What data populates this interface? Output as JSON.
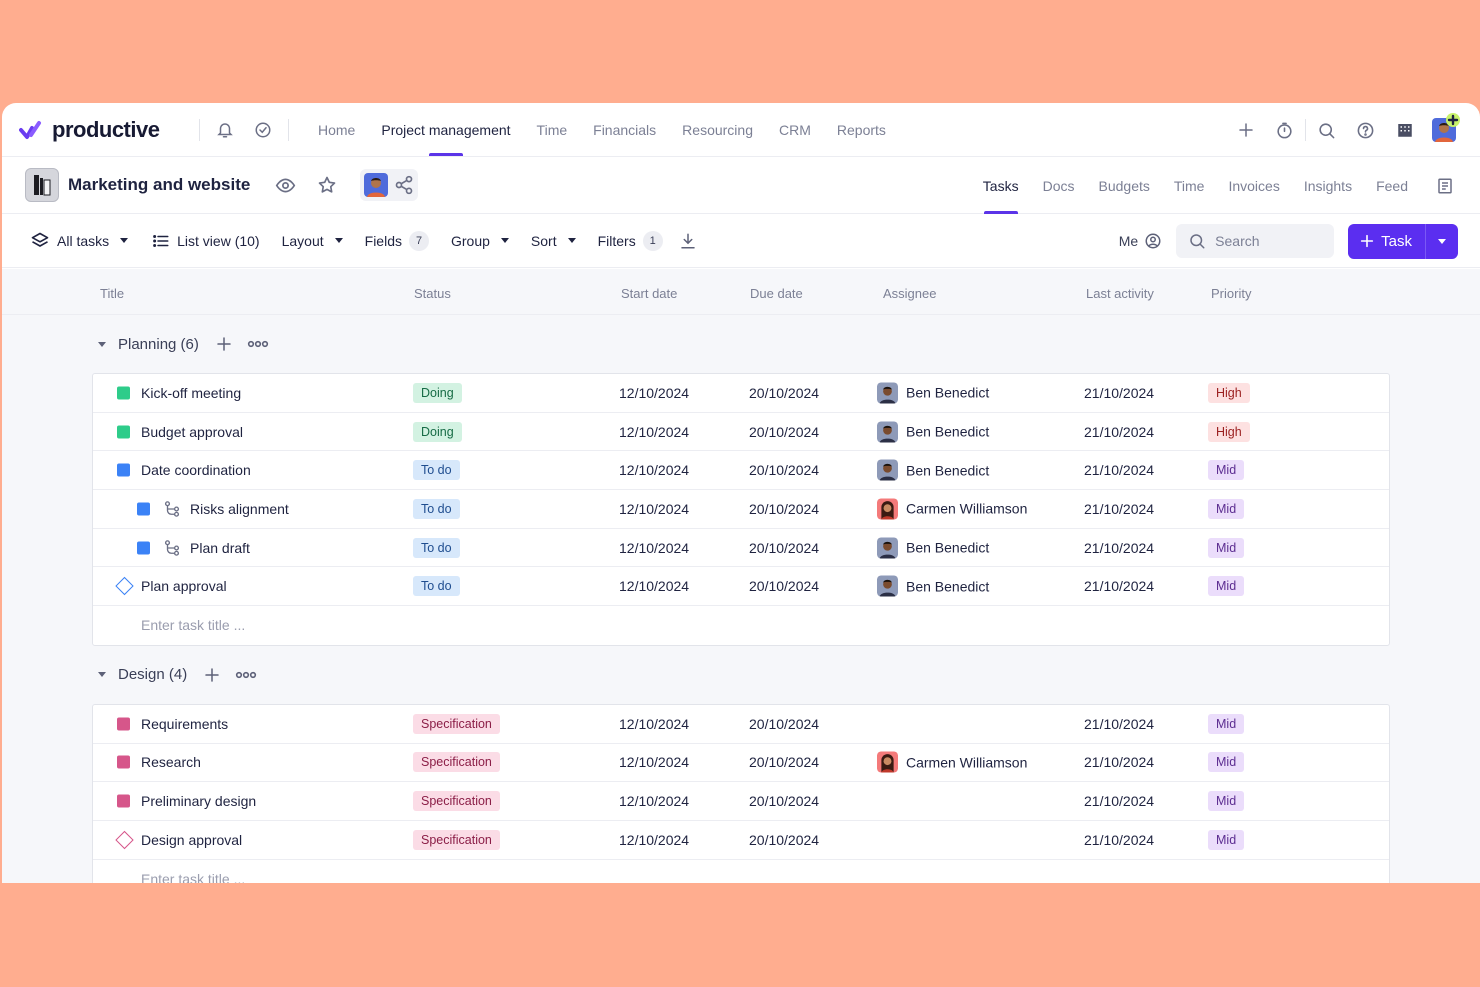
{
  "app": {
    "logo_text": "productive"
  },
  "topnav": {
    "links": [
      {
        "label": "Home",
        "active": false
      },
      {
        "label": "Project management",
        "active": true
      },
      {
        "label": "Time",
        "active": false
      },
      {
        "label": "Financials",
        "active": false
      },
      {
        "label": "Resourcing",
        "active": false
      },
      {
        "label": "CRM",
        "active": false
      },
      {
        "label": "Reports",
        "active": false
      }
    ]
  },
  "project": {
    "title": "Marketing and website",
    "tabs": [
      {
        "label": "Tasks",
        "active": true
      },
      {
        "label": "Docs",
        "active": false
      },
      {
        "label": "Budgets",
        "active": false
      },
      {
        "label": "Time",
        "active": false
      },
      {
        "label": "Invoices",
        "active": false
      },
      {
        "label": "Insights",
        "active": false
      },
      {
        "label": "Feed",
        "active": false
      }
    ]
  },
  "toolbar": {
    "all_tasks": "All tasks",
    "list_view": "List view (10)",
    "layout": "Layout",
    "fields": "Fields",
    "fields_count": "7",
    "group": "Group",
    "sort": "Sort",
    "filters": "Filters",
    "filters_count": "1",
    "me": "Me",
    "search_placeholder": "Search",
    "task_button": "Task"
  },
  "columns": {
    "title": "Title",
    "status": "Status",
    "start_date": "Start date",
    "due_date": "Due date",
    "assignee": "Assignee",
    "last_activity": "Last activity",
    "priority": "Priority"
  },
  "groups": [
    {
      "label": "Planning (6)",
      "new_task_placeholder": "Enter task title ...",
      "rows": [
        {
          "title": "Kick-off meeting",
          "marker": "square",
          "color": "#2ECC8A",
          "subtask": false,
          "status": "Doing",
          "status_type": "doing",
          "start": "12/10/2024",
          "due": "20/10/2024",
          "assignee": "Ben Benedict",
          "avatar": "ben",
          "last": "21/10/2024",
          "priority": "High",
          "priority_type": "high"
        },
        {
          "title": "Budget approval",
          "marker": "square",
          "color": "#2ECC8A",
          "subtask": false,
          "status": "Doing",
          "status_type": "doing",
          "start": "12/10/2024",
          "due": "20/10/2024",
          "assignee": "Ben Benedict",
          "avatar": "ben",
          "last": "21/10/2024",
          "priority": "High",
          "priority_type": "high"
        },
        {
          "title": "Date coordination",
          "marker": "square",
          "color": "#3B82F6",
          "subtask": false,
          "status": "To do",
          "status_type": "todo",
          "start": "12/10/2024",
          "due": "20/10/2024",
          "assignee": "Ben Benedict",
          "avatar": "ben",
          "last": "21/10/2024",
          "priority": "Mid",
          "priority_type": "mid"
        },
        {
          "title": "Risks alignment",
          "marker": "square",
          "color": "#3B82F6",
          "subtask": true,
          "status": "To do",
          "status_type": "todo",
          "start": "12/10/2024",
          "due": "20/10/2024",
          "assignee": "Carmen Williamson",
          "avatar": "carmen",
          "last": "21/10/2024",
          "priority": "Mid",
          "priority_type": "mid"
        },
        {
          "title": "Plan draft",
          "marker": "square",
          "color": "#3B82F6",
          "subtask": true,
          "status": "To do",
          "status_type": "todo",
          "start": "12/10/2024",
          "due": "20/10/2024",
          "assignee": "Ben Benedict",
          "avatar": "ben",
          "last": "21/10/2024",
          "priority": "Mid",
          "priority_type": "mid"
        },
        {
          "title": "Plan approval",
          "marker": "diamond",
          "color": "#3B82F6",
          "subtask": false,
          "status": "To do",
          "status_type": "todo",
          "start": "12/10/2024",
          "due": "20/10/2024",
          "assignee": "Ben Benedict",
          "avatar": "ben",
          "last": "21/10/2024",
          "priority": "Mid",
          "priority_type": "mid"
        }
      ]
    },
    {
      "label": "Design (4)",
      "new_task_placeholder": "Enter task title ...",
      "rows": [
        {
          "title": "Requirements",
          "marker": "square",
          "color": "#D6568A",
          "subtask": false,
          "status": "Specification",
          "status_type": "spec",
          "start": "12/10/2024",
          "due": "20/10/2024",
          "assignee": "",
          "avatar": "",
          "last": "21/10/2024",
          "priority": "Mid",
          "priority_type": "mid"
        },
        {
          "title": "Research",
          "marker": "square",
          "color": "#D6568A",
          "subtask": false,
          "status": "Specification",
          "status_type": "spec",
          "start": "12/10/2024",
          "due": "20/10/2024",
          "assignee": "Carmen Williamson",
          "avatar": "carmen",
          "last": "21/10/2024",
          "priority": "Mid",
          "priority_type": "mid"
        },
        {
          "title": "Preliminary design",
          "marker": "square",
          "color": "#D6568A",
          "subtask": false,
          "status": "Specification",
          "status_type": "spec",
          "start": "12/10/2024",
          "due": "20/10/2024",
          "assignee": "",
          "avatar": "",
          "last": "21/10/2024",
          "priority": "Mid",
          "priority_type": "mid"
        },
        {
          "title": "Design approval",
          "marker": "diamond",
          "color": "#D6568A",
          "subtask": false,
          "status": "Specification",
          "status_type": "spec",
          "start": "12/10/2024",
          "due": "20/10/2024",
          "assignee": "",
          "avatar": "",
          "last": "21/10/2024",
          "priority": "Mid",
          "priority_type": "mid"
        }
      ]
    }
  ]
}
